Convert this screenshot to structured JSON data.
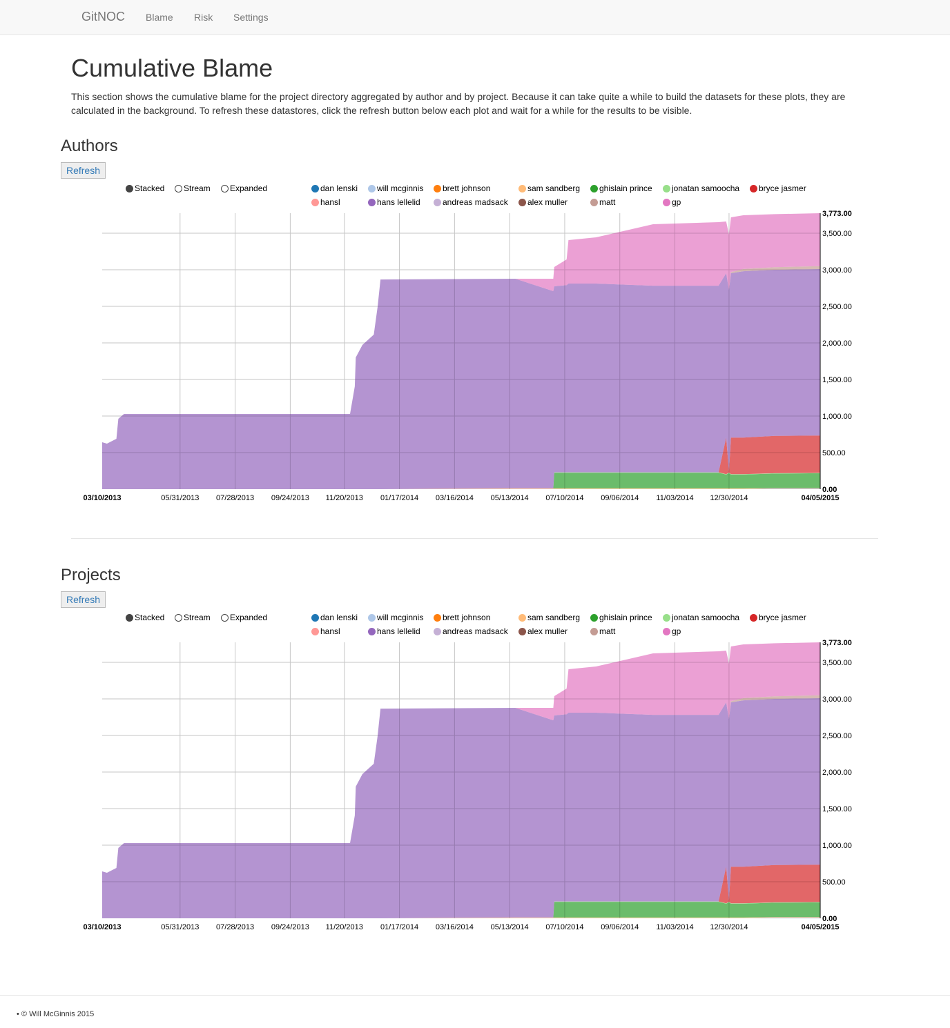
{
  "nav": {
    "brand": "GitNOC",
    "items": [
      "Blame",
      "Risk",
      "Settings"
    ]
  },
  "page": {
    "title": "Cumulative Blame",
    "intro": "This section shows the cumulative blame for the project directory aggregated by author and by project. Because it can take quite a while to build the datasets for these plots, they are calculated in the background. To refresh these datastores, click the refresh button below each plot and wait for a while for the results to be visible."
  },
  "controls": {
    "refresh": "Refresh",
    "modes": [
      {
        "label": "Stacked",
        "selected": true
      },
      {
        "label": "Stream",
        "selected": false
      },
      {
        "label": "Expanded",
        "selected": false
      }
    ]
  },
  "legend": [
    {
      "name": "dan lenski",
      "color": "#1f77b4"
    },
    {
      "name": "will mcginnis",
      "color": "#aec7e8"
    },
    {
      "name": "brett johnson",
      "color": "#ff7f0e"
    },
    {
      "name": "sam sandberg",
      "color": "#ffbb78"
    },
    {
      "name": "ghislain prince",
      "color": "#2ca02c"
    },
    {
      "name": "jonatan samoocha",
      "color": "#98df8a"
    },
    {
      "name": "bryce jasmer",
      "color": "#d62728"
    },
    {
      "name": "hansl",
      "color": "#ff9896"
    },
    {
      "name": "hans lellelid",
      "color": "#9467bd"
    },
    {
      "name": "andreas madsack",
      "color": "#c5b0d5"
    },
    {
      "name": "alex muller",
      "color": "#8c564b"
    },
    {
      "name": "matt",
      "color": "#c49c94"
    },
    {
      "name": "gp",
      "color": "#e377c2"
    }
  ],
  "sections": [
    {
      "title": "Authors"
    },
    {
      "title": "Projects"
    }
  ],
  "chart_data": [
    {
      "type": "area",
      "stacked": true,
      "title": "Authors",
      "ylim": [
        0,
        3773
      ],
      "xlim": [
        "2013-03-10",
        "2015-04-05"
      ],
      "grid": true,
      "yticks": [
        "0.00",
        "500.00",
        "1,000.00",
        "1,500.00",
        "2,000.00",
        "2,500.00",
        "3,000.00",
        "3,500.00",
        "3,773.00"
      ],
      "xticks": [
        "03/10/2013",
        "05/31/2013",
        "07/28/2013",
        "09/24/2013",
        "11/20/2013",
        "01/17/2014",
        "03/16/2014",
        "05/13/2014",
        "07/10/2014",
        "09/06/2014",
        "11/03/2014",
        "12/30/2014",
        "04/05/2015"
      ],
      "x": [
        "2013-03-10",
        "2013-03-15",
        "2013-03-25",
        "2013-03-27",
        "2013-04-02",
        "2013-11-26",
        "2013-12-01",
        "2013-12-02",
        "2013-12-09",
        "2013-12-21",
        "2013-12-25",
        "2013-12-28",
        "2014-05-19",
        "2014-06-28",
        "2014-06-29",
        "2014-07-12",
        "2014-07-14",
        "2014-08-12",
        "2014-10-11",
        "2014-12-19",
        "2014-12-27",
        "2014-12-30",
        "2015-01-01",
        "2015-01-14",
        "2015-02-16",
        "2015-04-05"
      ],
      "series": [
        {
          "name": "dan lenski",
          "values": [
            0,
            0,
            0,
            0,
            0,
            0,
            0,
            0,
            0,
            0,
            0,
            0,
            0,
            0,
            0,
            0,
            0,
            0,
            0,
            0,
            0,
            0,
            0,
            0,
            8,
            8
          ]
        },
        {
          "name": "sam sandberg",
          "values": [
            0,
            0,
            0,
            0,
            0,
            0,
            0,
            0,
            0,
            0,
            0,
            0,
            10,
            10,
            10,
            10,
            10,
            10,
            10,
            10,
            10,
            10,
            10,
            10,
            10,
            10
          ]
        },
        {
          "name": "ghislain prince",
          "values": [
            0,
            0,
            0,
            0,
            0,
            0,
            0,
            0,
            0,
            0,
            0,
            0,
            0,
            0,
            215,
            215,
            215,
            215,
            215,
            215,
            190,
            210,
            190,
            190,
            195,
            200
          ]
        },
        {
          "name": "jonatan samoocha",
          "values": [
            0,
            0,
            0,
            0,
            0,
            0,
            0,
            0,
            0,
            0,
            0,
            0,
            0,
            0,
            5,
            5,
            5,
            5,
            5,
            5,
            5,
            5,
            5,
            5,
            5,
            5
          ]
        },
        {
          "name": "bryce jasmer",
          "values": [
            0,
            0,
            0,
            0,
            0,
            0,
            0,
            0,
            0,
            0,
            0,
            0,
            0,
            0,
            0,
            0,
            0,
            0,
            0,
            0,
            500,
            20,
            500,
            500,
            510,
            510
          ]
        },
        {
          "name": "hans lellelid",
          "values": [
            641,
            623,
            689,
            962,
            1028,
            1028,
            1405,
            1801,
            1971,
            2113,
            2490,
            2867,
            2867,
            2697,
            2543,
            2560,
            2581,
            2581,
            2552,
            2552,
            2247,
            2481,
            2247,
            2275,
            2272,
            2276
          ]
        },
        {
          "name": "matt",
          "values": [
            0,
            0,
            0,
            0,
            0,
            0,
            0,
            0,
            0,
            0,
            0,
            0,
            0,
            0,
            0,
            0,
            0,
            0,
            0,
            0,
            0,
            0,
            15,
            30,
            35,
            40
          ]
        },
        {
          "name": "gp",
          "values": [
            0,
            0,
            0,
            0,
            0,
            0,
            0,
            0,
            0,
            0,
            0,
            0,
            0,
            170,
            264,
            351,
            594,
            632,
            840,
            868,
            708,
            755,
            749,
            735,
            725,
            724
          ]
        }
      ]
    },
    {
      "type": "area",
      "stacked": true,
      "title": "Projects",
      "ylim": [
        0,
        3773
      ],
      "xlim": [
        "2013-03-10",
        "2015-04-05"
      ],
      "grid": true,
      "yticks": [
        "0.00",
        "500.00",
        "1,000.00",
        "1,500.00",
        "2,000.00",
        "2,500.00",
        "3,000.00",
        "3,500.00",
        "3,773.00"
      ],
      "xticks": [
        "03/10/2013",
        "05/31/2013",
        "07/28/2013",
        "09/24/2013",
        "11/20/2013",
        "01/17/2014",
        "03/16/2014",
        "05/13/2014",
        "07/10/2014",
        "09/06/2014",
        "11/03/2014",
        "12/30/2014",
        "04/05/2015"
      ],
      "x": [
        "2013-03-10",
        "2013-03-15",
        "2013-03-25",
        "2013-03-27",
        "2013-04-02",
        "2013-11-26",
        "2013-12-01",
        "2013-12-02",
        "2013-12-09",
        "2013-12-21",
        "2013-12-25",
        "2013-12-28",
        "2014-05-19",
        "2014-06-28",
        "2014-06-29",
        "2014-07-12",
        "2014-07-14",
        "2014-08-12",
        "2014-10-11",
        "2014-12-19",
        "2014-12-27",
        "2014-12-30",
        "2015-01-01",
        "2015-01-14",
        "2015-02-16",
        "2015-04-05"
      ],
      "series": [
        {
          "name": "dan lenski",
          "values": [
            0,
            0,
            0,
            0,
            0,
            0,
            0,
            0,
            0,
            0,
            0,
            0,
            0,
            0,
            0,
            0,
            0,
            0,
            0,
            0,
            0,
            0,
            0,
            0,
            8,
            8
          ]
        },
        {
          "name": "sam sandberg",
          "values": [
            0,
            0,
            0,
            0,
            0,
            0,
            0,
            0,
            0,
            0,
            0,
            0,
            10,
            10,
            10,
            10,
            10,
            10,
            10,
            10,
            10,
            10,
            10,
            10,
            10,
            10
          ]
        },
        {
          "name": "ghislain prince",
          "values": [
            0,
            0,
            0,
            0,
            0,
            0,
            0,
            0,
            0,
            0,
            0,
            0,
            0,
            0,
            215,
            215,
            215,
            215,
            215,
            215,
            190,
            210,
            190,
            190,
            195,
            200
          ]
        },
        {
          "name": "jonatan samoocha",
          "values": [
            0,
            0,
            0,
            0,
            0,
            0,
            0,
            0,
            0,
            0,
            0,
            0,
            0,
            0,
            5,
            5,
            5,
            5,
            5,
            5,
            5,
            5,
            5,
            5,
            5,
            5
          ]
        },
        {
          "name": "bryce jasmer",
          "values": [
            0,
            0,
            0,
            0,
            0,
            0,
            0,
            0,
            0,
            0,
            0,
            0,
            0,
            0,
            0,
            0,
            0,
            0,
            0,
            0,
            500,
            20,
            500,
            500,
            510,
            510
          ]
        },
        {
          "name": "hans lellelid",
          "values": [
            641,
            623,
            689,
            962,
            1028,
            1028,
            1405,
            1801,
            1971,
            2113,
            2490,
            2867,
            2867,
            2697,
            2543,
            2560,
            2581,
            2581,
            2552,
            2552,
            2247,
            2481,
            2247,
            2275,
            2272,
            2276
          ]
        },
        {
          "name": "matt",
          "values": [
            0,
            0,
            0,
            0,
            0,
            0,
            0,
            0,
            0,
            0,
            0,
            0,
            0,
            0,
            0,
            0,
            0,
            0,
            0,
            0,
            0,
            0,
            15,
            30,
            35,
            40
          ]
        },
        {
          "name": "gp",
          "values": [
            0,
            0,
            0,
            0,
            0,
            0,
            0,
            0,
            0,
            0,
            0,
            0,
            0,
            170,
            264,
            351,
            594,
            632,
            840,
            868,
            708,
            755,
            749,
            735,
            725,
            724
          ]
        }
      ]
    }
  ],
  "footer": {
    "text": "© Will McGinnis 2015"
  }
}
